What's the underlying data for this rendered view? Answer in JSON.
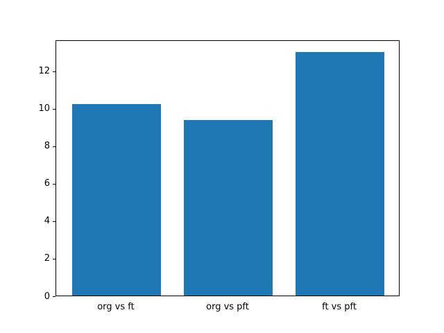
{
  "chart_data": {
    "type": "bar",
    "title": "",
    "xlabel": "",
    "ylabel": "",
    "categories": [
      "org vs ft",
      "org vs pft",
      "ft vs pft"
    ],
    "values": [
      10.2,
      9.35,
      13.0
    ],
    "bar_color": "#1f77b4",
    "ylim": [
      0,
      13.65
    ],
    "yticks": [
      0,
      2,
      4,
      6,
      8,
      10,
      12
    ],
    "xlim": [
      -0.54,
      2.54
    ],
    "bar_width": 0.8,
    "grid": false,
    "legend": false
  }
}
